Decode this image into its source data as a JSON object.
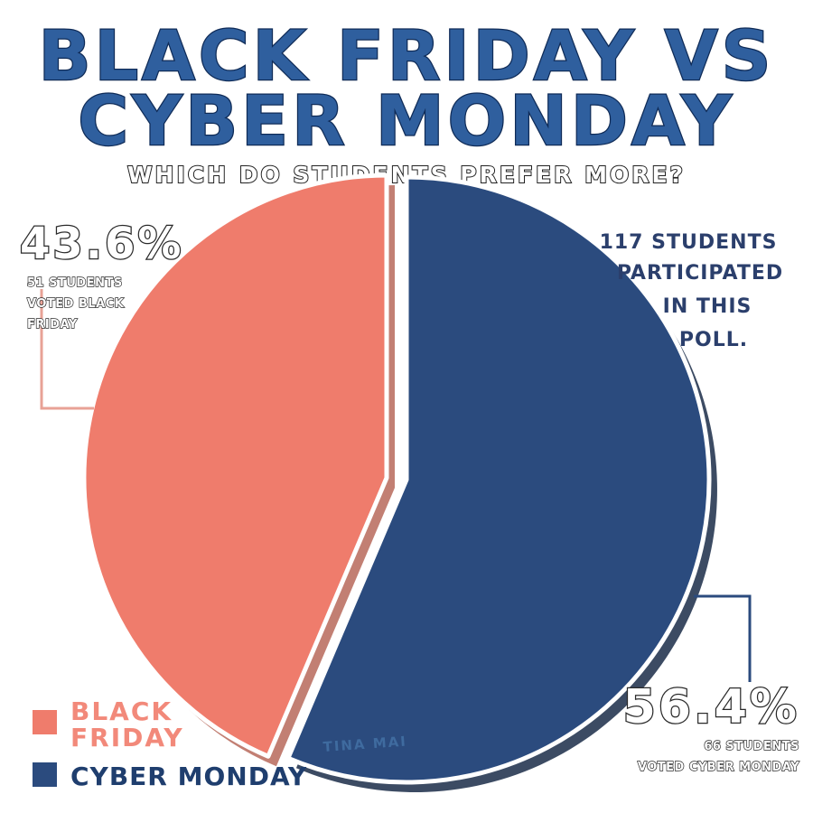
{
  "chart_data": {
    "type": "pie",
    "title_lines": [
      "BLACK FRIDAY VS",
      "CYBER MONDAY"
    ],
    "subtitle": "WHICH DO STUDENTS PREFER MORE?",
    "slices": [
      {
        "name": "BLACK FRIDAY",
        "value": 43.6,
        "value_label": "43.6%",
        "note_lines": [
          "51 STUDENTS",
          "VOTED BLACK",
          "FRIDAY"
        ],
        "color": "#ef7c6c",
        "shadow_color": "#b7685a"
      },
      {
        "name": "CYBER MONDAY",
        "value": 56.4,
        "value_label": "56.4%",
        "note_lines": [
          "66 STUDENTS",
          "VOTED CYBER MONDAY"
        ],
        "color": "#2b4b7e",
        "shadow_color": "#1a2b48"
      }
    ],
    "legend": [
      {
        "label_lines": [
          "BLACK",
          "FRIDAY"
        ],
        "color": "#ef7c6c"
      },
      {
        "label_lines": [
          "CYBER MONDAY"
        ],
        "color": "#2b4b7e"
      }
    ],
    "annotation_lines": [
      "117 STUDENTS",
      "PARTICIPATED",
      "IN THIS",
      "POLL."
    ],
    "signature": "TINA MAI"
  },
  "colors": {
    "title_fill": "#2f5f9e",
    "title_stroke": "#0f2b57",
    "leader_black_friday": "#e8a296",
    "leader_cyber_monday": "#2b4b7e"
  }
}
